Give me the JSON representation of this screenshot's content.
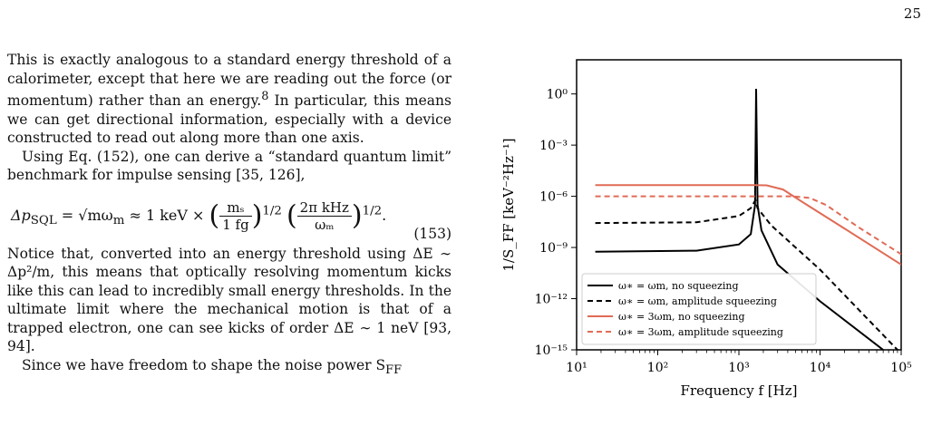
{
  "page": {
    "number": "25"
  },
  "text": {
    "para1": "This is exactly analogous to a standard energy threshold of a calorimeter, except that here we are reading out the force (or momentum) rather than an energy.",
    "para1_footnote": "8",
    "para1_cont": " In particular, this means we can get directional information, especially with a device constructed to read out along more than one axis.",
    "para2": "Using Eq. (152), one can derive a “standard quantum limit” benchmark for impulse sensing [35, 126],",
    "eq_lhs": "Δp",
    "eq_lhs_sub": "SQL",
    "eq_mid": " = √mω",
    "eq_mid_sub": "m",
    "eq_approx": " ≈ 1 keV × ",
    "eq_frac1_num": "mₛ",
    "eq_frac1_den": "1 fg",
    "eq_frac2_num": "2π kHz",
    "eq_frac2_den": "ωₘ",
    "eq_exp": "1/2",
    "eq_number": "(153)",
    "para3": "Notice that, converted into an energy threshold using ΔE ∼ Δp²/m, this means that optically resolving momentum kicks like this can lead to incredibly small energy thresholds. In the ultimate limit where the mechanical motion is that of a trapped electron, one can see kicks of order ΔE ∼ 1 neV [93, 94].",
    "para4": "Since we have freedom to shape the noise power S"
  },
  "chart_data": {
    "type": "line",
    "xlabel": "Frequency f [Hz]",
    "ylabel": "1/S_FF [keV⁻²Hz⁻¹]",
    "xscale": "log",
    "yscale": "log",
    "xlim": [
      10,
      100000
    ],
    "ylim": [
      1e-15,
      100.0
    ],
    "xticks": [
      "10¹",
      "10²",
      "10³",
      "10⁴",
      "10⁵"
    ],
    "yticks": [
      "10⁰",
      "10⁻³",
      "10⁻⁶",
      "10⁻⁹",
      "10⁻¹²",
      "10⁻¹⁵"
    ],
    "legend_position": "lower-left",
    "series": [
      {
        "name": "ω∗ = ωm, no squeezing",
        "color": "#000000",
        "dash": "solid",
        "points": [
          [
            17,
            5.6e-10
          ],
          [
            300,
            6.5e-10
          ],
          [
            1000,
            1.5e-09
          ],
          [
            1400,
            6e-09
          ],
          [
            1580,
            3e-07
          ],
          [
            1630,
            2
          ],
          [
            1700,
            3e-07
          ],
          [
            1900,
            1e-08
          ],
          [
            3000,
            1e-10
          ],
          [
            10000,
            7e-13
          ],
          [
            60000,
            1e-15
          ]
        ]
      },
      {
        "name": "ω∗ = ωm, amplitude squeezing",
        "color": "#000000",
        "dash": "dashed",
        "points": [
          [
            17,
            2.7e-08
          ],
          [
            300,
            3e-08
          ],
          [
            1000,
            7e-08
          ],
          [
            1400,
            2e-07
          ],
          [
            1600,
            6e-07
          ],
          [
            1700,
            2e-07
          ],
          [
            2500,
            2e-08
          ],
          [
            10000,
            5e-11
          ],
          [
            90000,
            1e-15
          ]
        ]
      },
      {
        "name": "ω∗ = 3ωm, no squeezing",
        "color": "#e06b56",
        "dash": "solid",
        "points": [
          [
            17,
            4.5e-06
          ],
          [
            1500,
            4.5e-06
          ],
          [
            2200,
            4.4e-06
          ],
          [
            3500,
            2.5e-06
          ],
          [
            7000,
            3e-07
          ],
          [
            20000,
            1.3e-08
          ],
          [
            100000,
            1e-10
          ]
        ]
      },
      {
        "name": "ω∗ = 3ωm, amplitude squeezing",
        "color": "#e06b56",
        "dash": "dashed",
        "points": [
          [
            17,
            1e-06
          ],
          [
            4500,
            1e-06
          ],
          [
            7500,
            8e-07
          ],
          [
            12000,
            3e-07
          ],
          [
            30000,
            1.5e-08
          ],
          [
            100000,
            4e-10
          ]
        ]
      }
    ]
  }
}
